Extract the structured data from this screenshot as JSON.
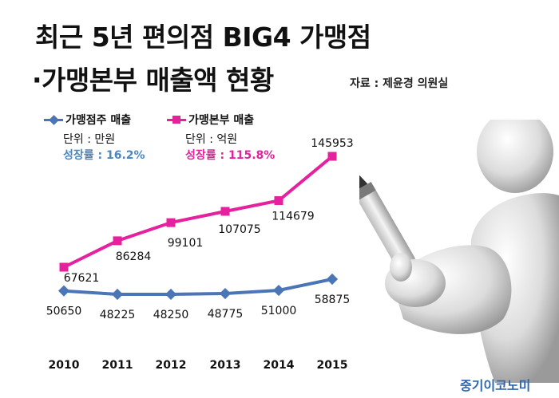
{
  "header": {
    "title_line1": "최근 5년 편의점 BIG4 가맹점",
    "title_line2": "·가맹본부 매출액 현황",
    "source": "자료 : 제윤경 의원실"
  },
  "legend": {
    "franchisee": "가맹점주 매출",
    "headquarters": "가맹본부 매출"
  },
  "notes": {
    "franchisee_unit": "단위 : 만원",
    "franchisee_growth": "성장률 : 16.2%",
    "headquarters_unit": "단위 : 억원",
    "headquarters_growth": "성장률 : 115.8%"
  },
  "brand": "중기이코노미",
  "colors": {
    "franchisee": "#4a76b8",
    "headquarters": "#e6219e",
    "franchisee_growth": "#4a86c0",
    "brand": "#2e67b1"
  },
  "chart_data": {
    "type": "line",
    "title": "최근 5년 편의점 BIG4 가맹점·가맹본부 매출액 현황",
    "x": [
      "2010",
      "2011",
      "2012",
      "2013",
      "2014",
      "2015"
    ],
    "series": [
      {
        "name": "가맹점주 매출",
        "unit": "만원",
        "values": [
          50650,
          48225,
          48250,
          48775,
          51000,
          58875
        ],
        "labels": [
          "50650",
          "48225",
          "48250",
          "48775",
          "51000",
          "58875"
        ]
      },
      {
        "name": "가맹본부 매출",
        "unit": "억원",
        "values": [
          67621,
          86284,
          99101,
          107075,
          114679,
          145953
        ],
        "labels": [
          "67621",
          "86284",
          "99101",
          "107075",
          "114679",
          "145953"
        ]
      }
    ],
    "grid": false,
    "legend_position": "top-left"
  }
}
